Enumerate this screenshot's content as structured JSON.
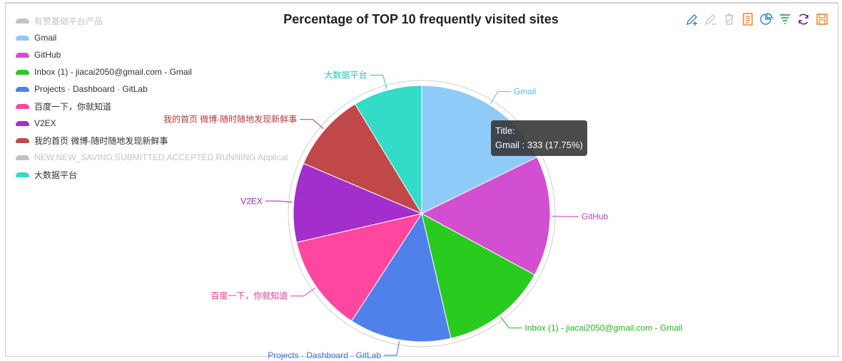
{
  "chart_data": {
    "type": "pie",
    "title": "Percentage of TOP 10 frequently visited sites",
    "legend": [
      {
        "name": "有赞基础平台产品",
        "color": "#c3c3c3",
        "active": false
      },
      {
        "name": "Gmail",
        "color": "#8ecbf8",
        "active": true
      },
      {
        "name": "GitHub",
        "color": "#d24fd1",
        "active": true
      },
      {
        "name": "Inbox (1) - jiacai2050@gmail.com - Gmail",
        "color": "#2acb1f",
        "active": true
      },
      {
        "name": "Projects · Dashboard · GitLab",
        "color": "#5080ea",
        "active": true
      },
      {
        "name": "百度一下，你就知道",
        "color": "#ff47a0",
        "active": true
      },
      {
        "name": "V2EX",
        "color": "#a42ecb",
        "active": true
      },
      {
        "name": "我的首页 微博-随时随地发现新鲜事",
        "color": "#c04848",
        "active": true
      },
      {
        "name": "NEW,NEW_SAVING,SUBMITTED,ACCEPTED,RUNNING Applicat",
        "color": "#c3c3c3",
        "active": false
      },
      {
        "name": "大数据平台",
        "color": "#33dbc9",
        "active": true
      }
    ],
    "slices": [
      {
        "name": "Gmail",
        "value": 333,
        "color": "#8ecbf8",
        "label_color": "#5ab4f1"
      },
      {
        "name": "GitHub",
        "value": 285,
        "color": "#d24fd1",
        "label_color": "#c33fc2"
      },
      {
        "name": "Inbox (1) - jiacai2050@gmail.com - Gmail",
        "value": 252,
        "color": "#2acb1f",
        "label_color": "#21b817"
      },
      {
        "name": "Projects · Dashboard · GitLab",
        "value": 241,
        "color": "#5080ea",
        "label_color": "#3f6fdb"
      },
      {
        "name": "百度一下，你就知道",
        "value": 229,
        "color": "#ff47a0",
        "label_color": "#ee3b93"
      },
      {
        "name": "V2EX",
        "value": 188,
        "color": "#a42ecb",
        "label_color": "#9922c0"
      },
      {
        "name": "我的首页 微博-随时随地发现新鲜事",
        "value": 186,
        "color": "#c04848",
        "label_color": "#b83a3a"
      },
      {
        "name": "大数据平台",
        "value": 163,
        "color": "#33dbc9",
        "label_color": "#22c8b6"
      }
    ],
    "tooltip": {
      "title": "Title:",
      "text": "Gmail : 333 (17.75%)"
    }
  },
  "toolbox": [
    {
      "icon": "pencil-plus-icon",
      "color": "#3a78d8"
    },
    {
      "icon": "pencil-clear-icon",
      "color": "#c8c8c8"
    },
    {
      "icon": "trash-icon",
      "color": "#c8c8c8"
    },
    {
      "icon": "data-view-icon",
      "color": "#e67e22"
    },
    {
      "icon": "pie-chart-icon",
      "color": "#1e88e5"
    },
    {
      "icon": "funnel-icon",
      "color": "#22b14c"
    },
    {
      "icon": "refresh-icon",
      "color": "#6a1b9a"
    },
    {
      "icon": "save-icon",
      "color": "#e67e22"
    }
  ]
}
